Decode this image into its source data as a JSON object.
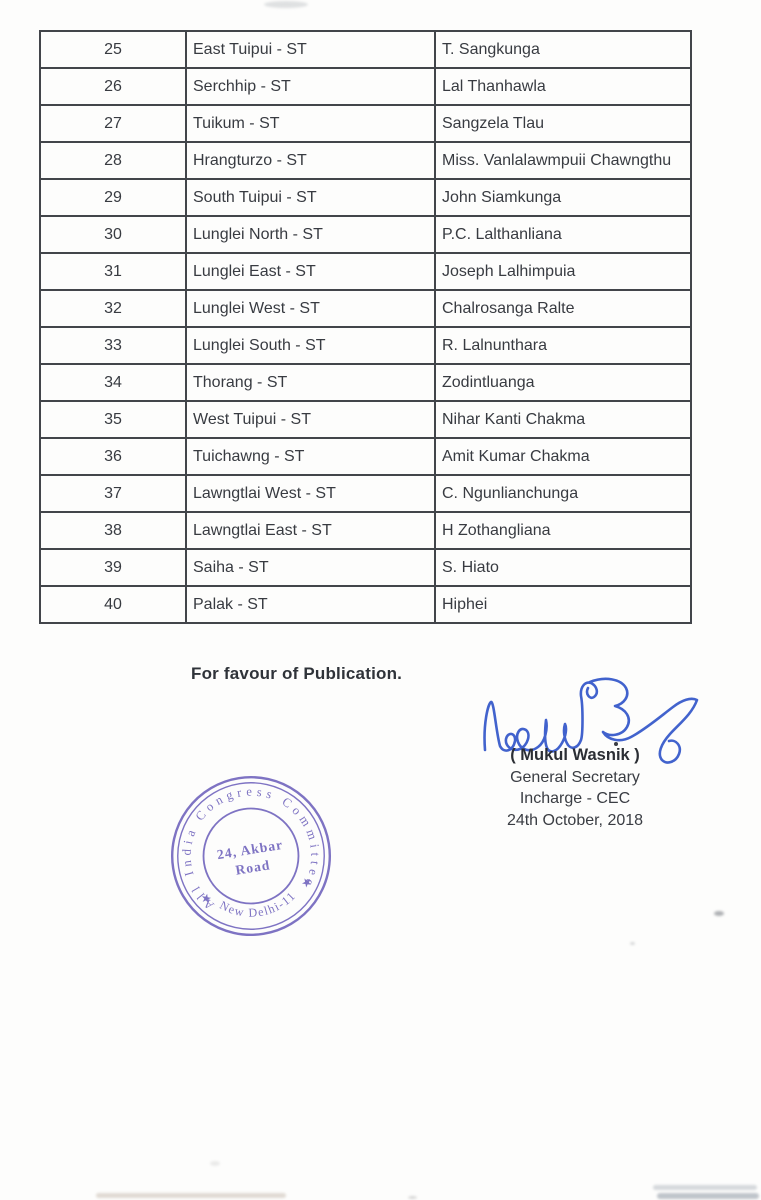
{
  "document": {
    "table": {
      "rows": [
        {
          "no": "25",
          "constituency": "East Tuipui - ST",
          "candidate": "T. Sangkunga"
        },
        {
          "no": "26",
          "constituency": "Serchhip - ST",
          "candidate": "Lal Thanhawla"
        },
        {
          "no": "27",
          "constituency": "Tuikum - ST",
          "candidate": "Sangzela Tlau"
        },
        {
          "no": "28",
          "constituency": "Hrangturzo - ST",
          "candidate": "Miss. Vanlalawmpuii Chawngthu"
        },
        {
          "no": "29",
          "constituency": "South Tuipui - ST",
          "candidate": "John Siamkunga"
        },
        {
          "no": "30",
          "constituency": "Lunglei North - ST",
          "candidate": "P.C. Lalthanliana"
        },
        {
          "no": "31",
          "constituency": "Lunglei East - ST",
          "candidate": "Joseph Lalhimpuia"
        },
        {
          "no": "32",
          "constituency": "Lunglei West - ST",
          "candidate": "Chalrosanga Ralte"
        },
        {
          "no": "33",
          "constituency": "Lunglei South - ST",
          "candidate": "R. Lalnunthara"
        },
        {
          "no": "34",
          "constituency": "Thorang - ST",
          "candidate": "Zodintluanga"
        },
        {
          "no": "35",
          "constituency": "West Tuipui - ST",
          "candidate": "Nihar Kanti Chakma"
        },
        {
          "no": "36",
          "constituency": "Tuichawng - ST",
          "candidate": "Amit Kumar Chakma"
        },
        {
          "no": "37",
          "constituency": "Lawngtlai West - ST",
          "candidate": "C. Ngunlianchunga"
        },
        {
          "no": "38",
          "constituency": "Lawngtlai East - ST",
          "candidate": "H Zothangliana"
        },
        {
          "no": "39",
          "constituency": "Saiha - ST",
          "candidate": "S. Hiato"
        },
        {
          "no": "40",
          "constituency": "Palak - ST",
          "candidate": "Hiphei"
        }
      ]
    },
    "publication_note": "For favour of Publication.",
    "signatory": {
      "name": "( Mukul Wasnik )",
      "title": "General Secretary",
      "subtitle": "Incharge - CEC",
      "date": "24th October, 2018"
    },
    "stamp": {
      "arc_top": "All India Congress Committee",
      "arc_bottom": "New Delhi-11",
      "center_line1": "24, Akbar",
      "center_line2": "Road",
      "star": "★",
      "color": "#7165bd"
    },
    "ink_color": "#2d52c8"
  }
}
